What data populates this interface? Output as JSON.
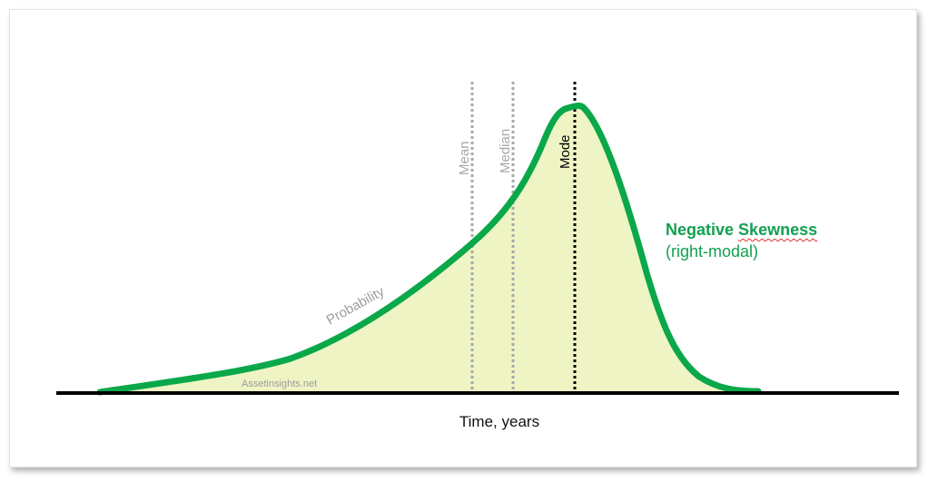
{
  "colors": {
    "curve": "#0aa84a",
    "fill": "#eff4c4",
    "axis": "#000000",
    "mean_line": "#a8a8a8",
    "median_line": "#a8a8a8",
    "mode_line": "#000000",
    "watermark": "#9c9c9c",
    "title": "#12a050"
  },
  "labels": {
    "mean": "Mean",
    "median": "Median",
    "mode": "Mode",
    "curve": "Probability",
    "watermark": "Assetinsights.net",
    "xlabel": "Time, years"
  },
  "title": {
    "prefix": "Negative ",
    "underlined": "Skewness",
    "subtitle": "(right-modal)"
  }
}
